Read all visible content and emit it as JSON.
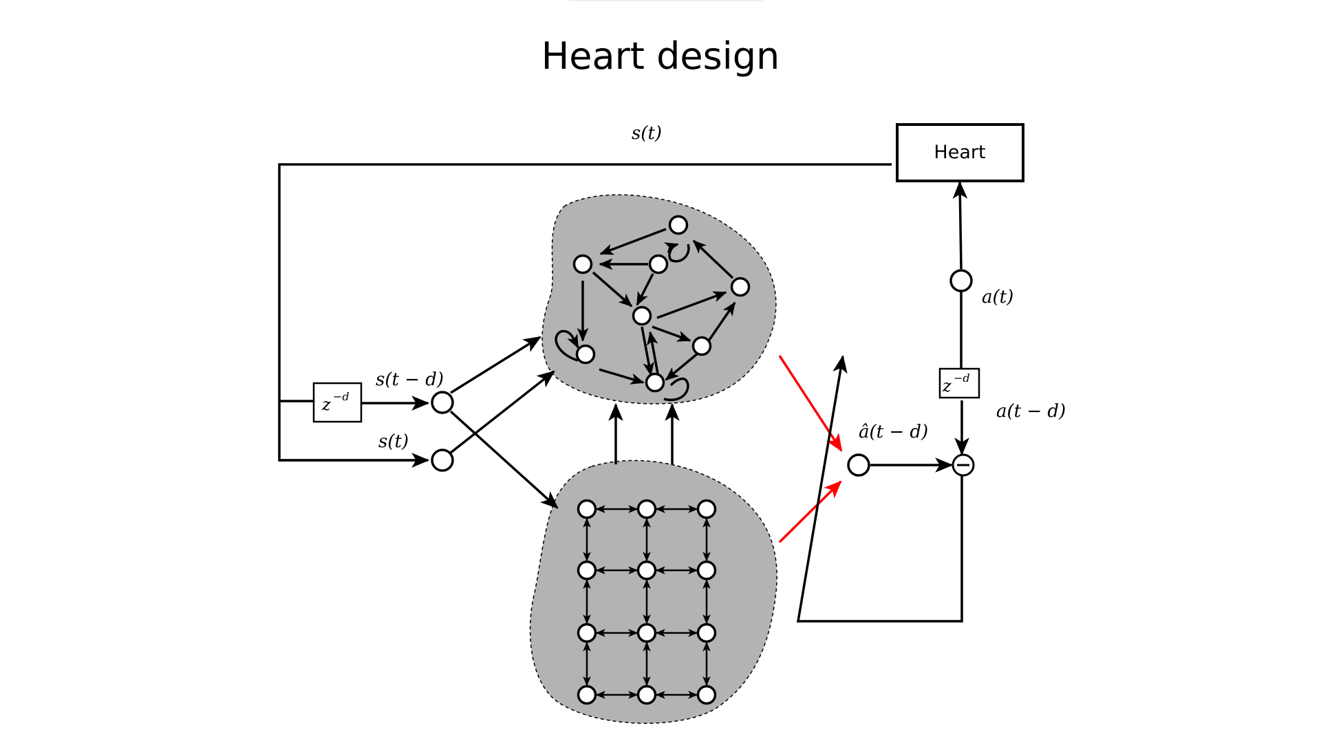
{
  "title": "Heart design",
  "heart_box": {
    "label": "Heart"
  },
  "delay_block": {
    "base": "z",
    "exponent": "−d"
  },
  "labels": {
    "s_top": "s(t)",
    "s_delayed": "s(t − d)",
    "s_input": "s(t)",
    "a_output": "a(t)",
    "a_delayed": "a(t − d)",
    "a_hat": "â(t − d)",
    "minus": "−"
  },
  "colors": {
    "reservoir_fill": "#b3b3b3",
    "readout_arrow": "#ff0000",
    "line": "#000000"
  }
}
